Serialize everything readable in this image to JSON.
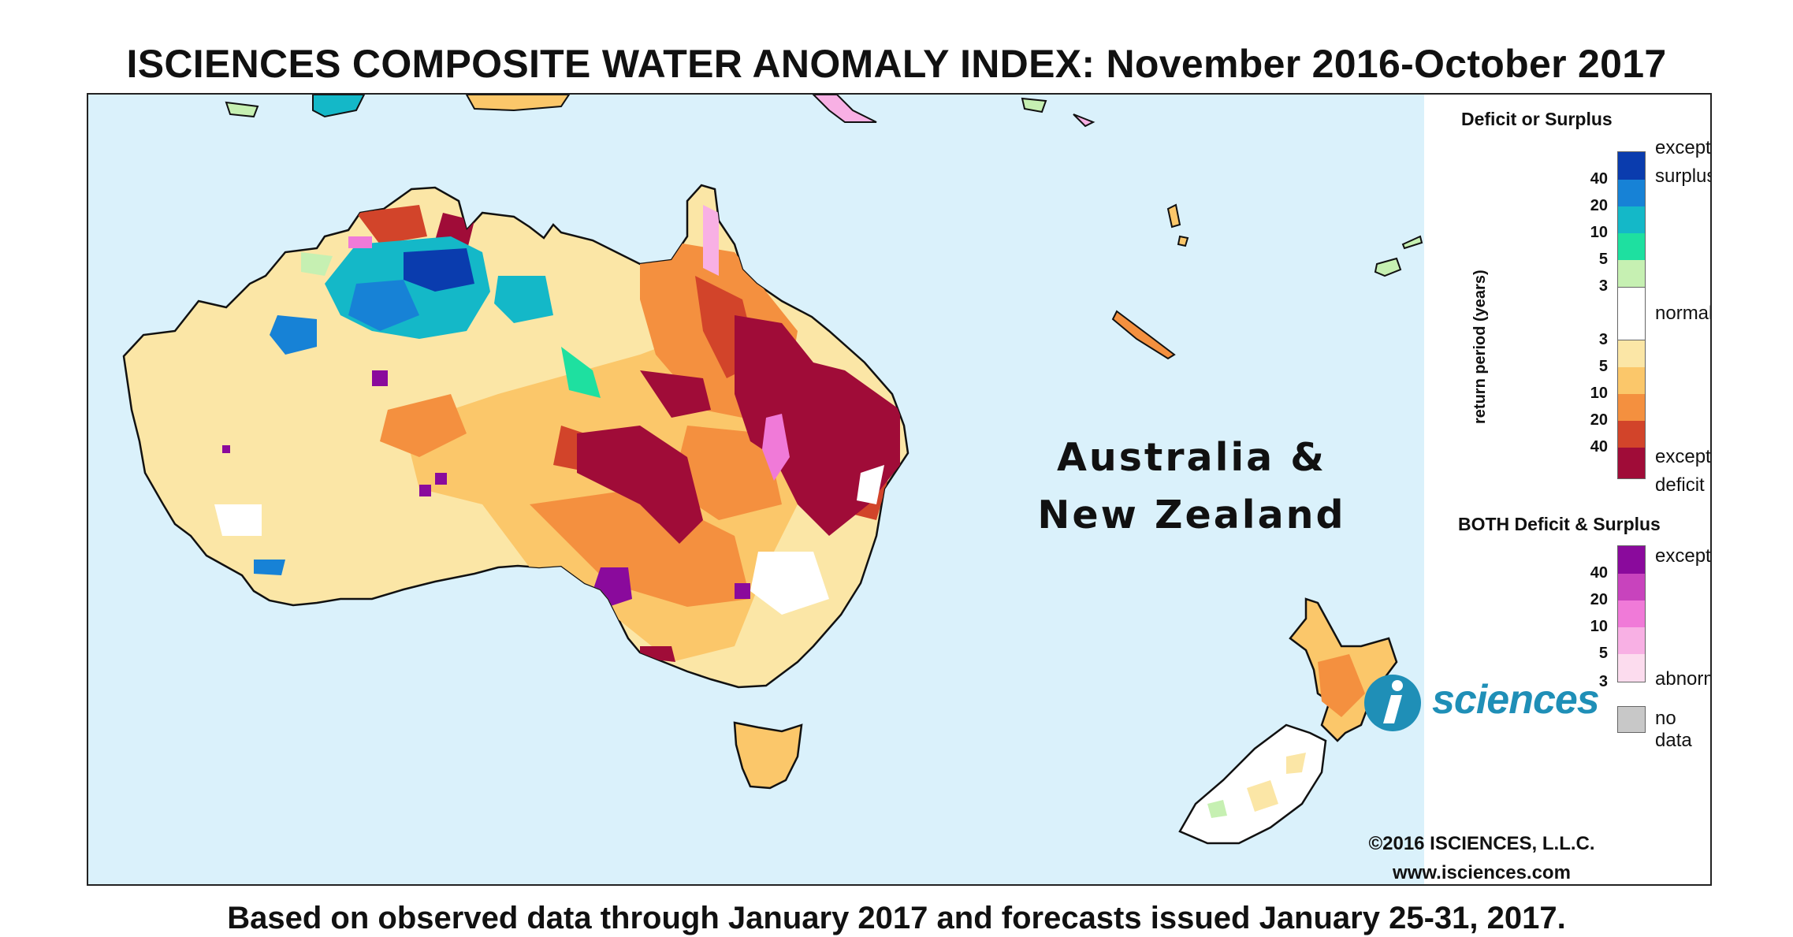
{
  "title": "ISCIENCES COMPOSITE WATER ANOMALY INDEX: November 2016-October 2017",
  "region_label_line1": "Australia &",
  "region_label_line2": "New Zealand",
  "legend": {
    "deficit_surplus_heading": "Deficit or Surplus",
    "axis_label": "return period (years)",
    "surplus_desc_1": "exceptional",
    "surplus_desc_2": "surplus",
    "normal_desc": "normal",
    "deficit_desc_1": "exceptional",
    "deficit_desc_2": "deficit",
    "surplus_ticks": [
      "40",
      "20",
      "10",
      "5",
      "3"
    ],
    "deficit_ticks": [
      "3",
      "5",
      "10",
      "20",
      "40"
    ],
    "surplus_colors": [
      "#0a3cae",
      "#1782d6",
      "#14b8c8",
      "#1ee0a0",
      "#c6f0b2"
    ],
    "normal_color": "#ffffff",
    "deficit_colors": [
      "#fbe6a6",
      "#fbc76a",
      "#f4903f",
      "#d2442a",
      "#a00c38"
    ],
    "both_heading": "BOTH Deficit & Surplus",
    "both_desc_top": "exceptional",
    "both_desc_bottom": "abnormal",
    "both_ticks": [
      "40",
      "20",
      "10",
      "5",
      "3"
    ],
    "both_colors": [
      "#8a0a9c",
      "#c843bd",
      "#f07ad8",
      "#f8b0e4",
      "#fcdcee"
    ],
    "no_data_label": "no data",
    "no_data_color": "#c8c8c8"
  },
  "logo": {
    "letter": "i",
    "text": "sciences",
    "color": "#1f8fb7"
  },
  "copyright": "©2016 ISCIENCES, L.L.C.",
  "website": "www.isciences.com",
  "footer": "Based on observed data through January 2017 and forecasts issued January 25-31, 2017."
}
